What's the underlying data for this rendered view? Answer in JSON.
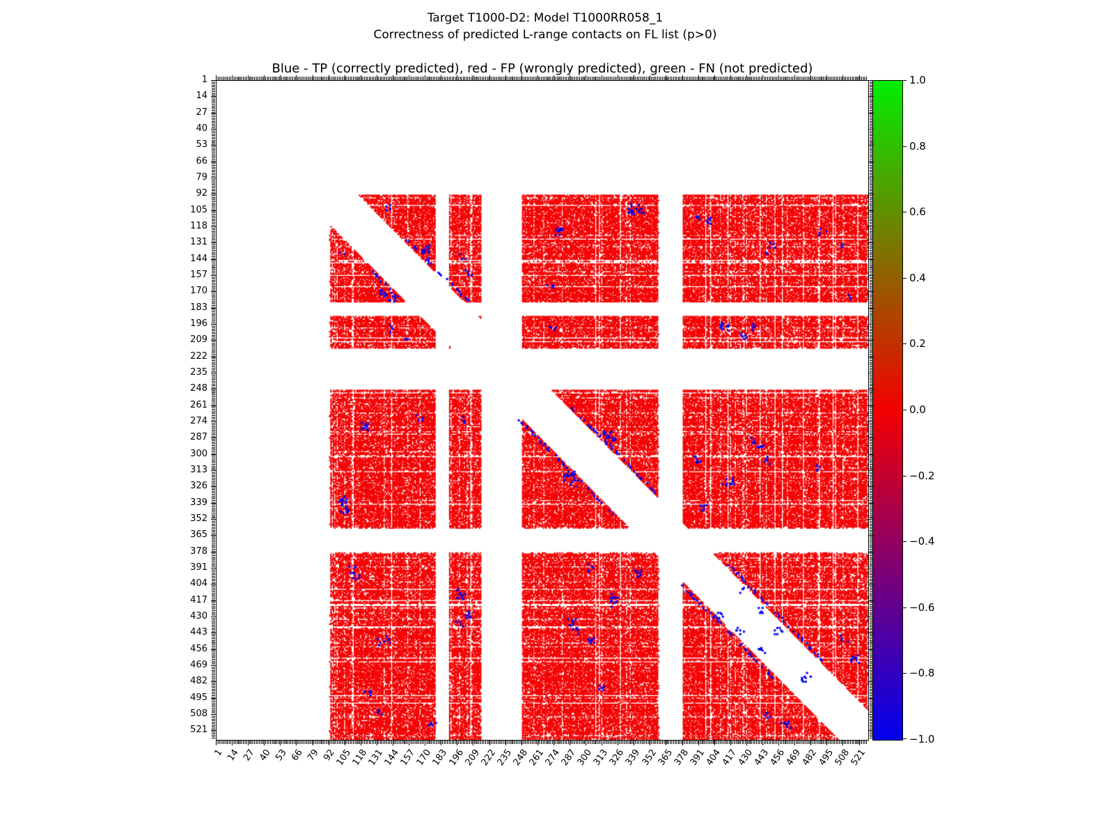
{
  "figure": {
    "suptitle_line1": "Target T1000-D2: Model T1000RR058_1",
    "suptitle_line2": "Correctness of predicted L-range contacts on FL list (p>0)"
  },
  "chart_data": {
    "type": "heatmap",
    "title": "Blue - TP (correctly predicted), red - FP (wrongly predicted), green - FN (not predicted)",
    "xlabel": "",
    "ylabel": "",
    "legend": {
      "blue": "TP (correctly predicted)",
      "red": "FP (wrongly predicted)",
      "green": "FN (not predicted)"
    },
    "colors": {
      "tp_blue": "#0000ee",
      "fp_red": "#f40000",
      "fn_green": "#00cc00",
      "background": "#ffffff"
    },
    "axis_range": [
      1,
      528
    ],
    "x_ticks": [
      1,
      14,
      27,
      40,
      53,
      66,
      79,
      92,
      105,
      118,
      131,
      144,
      157,
      170,
      183,
      196,
      209,
      222,
      235,
      248,
      261,
      274,
      287,
      300,
      313,
      326,
      339,
      352,
      365,
      378,
      391,
      404,
      417,
      430,
      443,
      456,
      469,
      482,
      495,
      508,
      521
    ],
    "y_ticks": [
      1,
      14,
      27,
      40,
      53,
      66,
      79,
      92,
      105,
      118,
      131,
      144,
      157,
      170,
      183,
      196,
      209,
      222,
      235,
      248,
      261,
      274,
      287,
      300,
      313,
      326,
      339,
      352,
      365,
      378,
      391,
      404,
      417,
      430,
      443,
      456,
      469,
      482,
      495,
      508,
      521
    ],
    "data_segments": [
      [
        92,
        177
      ],
      [
        189,
        214
      ],
      [
        248,
        358
      ],
      [
        378,
        527
      ]
    ],
    "diagonal_exclusion_halfwidth": 24,
    "fp_fill_density": 0.87,
    "tp_clusters": [
      [
        104,
        336,
        8
      ],
      [
        103,
        344,
        5
      ],
      [
        113,
        398,
        6
      ],
      [
        121,
        277,
        7
      ],
      [
        136,
        170,
        6
      ],
      [
        102,
        138,
        4
      ],
      [
        170,
        135,
        8
      ],
      [
        174,
        143,
        6
      ],
      [
        154,
        205,
        5
      ],
      [
        132,
        449,
        5
      ],
      [
        132,
        506,
        4
      ],
      [
        199,
        142,
        6
      ],
      [
        199,
        272,
        5
      ],
      [
        196,
        410,
        6
      ],
      [
        197,
        435,
        5
      ],
      [
        277,
        120,
        7
      ],
      [
        271,
        164,
        5
      ],
      [
        283,
        317,
        9
      ],
      [
        288,
        322,
        6
      ],
      [
        291,
        441,
        6
      ],
      [
        303,
        390,
        8
      ],
      [
        321,
        418,
        7
      ],
      [
        315,
        288,
        6
      ],
      [
        338,
        102,
        8
      ],
      [
        344,
        105,
        6
      ],
      [
        391,
        111,
        6
      ],
      [
        413,
        198,
        6
      ],
      [
        427,
        204,
        7
      ],
      [
        394,
        342,
        8
      ],
      [
        413,
        322,
        6
      ],
      [
        433,
        288,
        7
      ],
      [
        447,
        304,
        8
      ],
      [
        486,
        311,
        6
      ],
      [
        447,
        139,
        5
      ],
      [
        491,
        122,
        6
      ],
      [
        514,
        175,
        5
      ],
      [
        427,
        407,
        7
      ],
      [
        441,
        424,
        6
      ],
      [
        455,
        441,
        8
      ],
      [
        516,
        460,
        6
      ],
      [
        508,
        446,
        5
      ],
      [
        463,
        517,
        6
      ],
      [
        480,
        475,
        6
      ]
    ],
    "tp_diag_traces": [
      [
        128,
        176,
        27
      ],
      [
        150,
        176,
        -27
      ],
      [
        262,
        330,
        26
      ],
      [
        272,
        348,
        -26
      ],
      [
        388,
        468,
        27
      ],
      [
        400,
        478,
        -27
      ]
    ],
    "colorbar": {
      "min": -1.0,
      "max": 1.0,
      "tick_labels": [
        "1.0",
        "0.8",
        "0.6",
        "0.4",
        "0.2",
        "0.0",
        "−0.2",
        "−0.4",
        "−0.6",
        "−0.8",
        "−1.0"
      ],
      "gradient_stops": [
        "#00ee00",
        "#f40000",
        "#0000ee"
      ]
    }
  }
}
